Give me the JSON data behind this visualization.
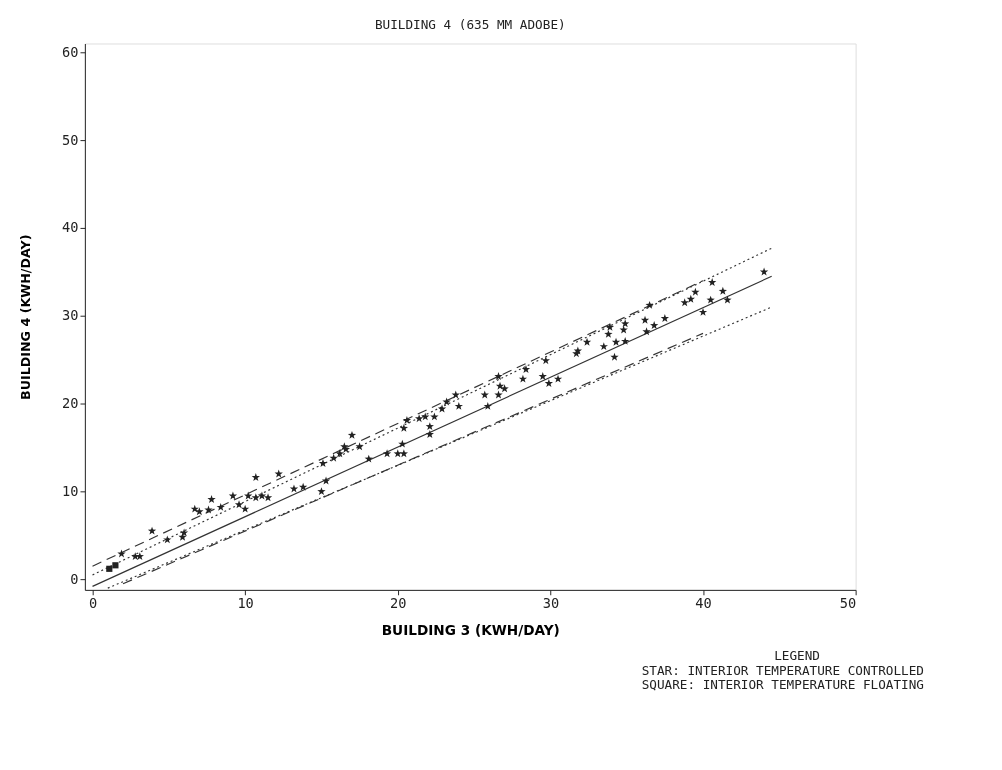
{
  "chart_data": {
    "type": "scatter",
    "title": "BUILDING 4 (635 MM ADOBE)",
    "xlabel": "BUILDING 3 (KWH/DAY)",
    "ylabel": "BUILDING 4 (KWH/DAY)",
    "xlim": [
      -0.5,
      50
    ],
    "ylim": [
      -1.2,
      61
    ],
    "xticks": [
      0,
      10,
      20,
      30,
      40,
      50
    ],
    "yticks": [
      0,
      10,
      20,
      30,
      40,
      50,
      60
    ],
    "grid": false,
    "annotations": [
      "LEGEND",
      "STAR: INTERIOR TEMPERATURE CONTROLLED",
      "SQUARE: INTERIOR TEMPERATURE FLOATING"
    ],
    "series": [
      {
        "type": "line",
        "line_style": "dashed",
        "color": "#333333",
        "x": [
          0,
          40
        ],
        "values": [
          1.5,
          34
        ]
      },
      {
        "type": "line",
        "line_style": "dotted",
        "color": "#333333",
        "x": [
          0,
          44.5
        ],
        "values": [
          0.5,
          37.7
        ]
      },
      {
        "type": "line",
        "line_style": "solid",
        "color": "#333333",
        "x": [
          0,
          44.5
        ],
        "values": [
          -0.8,
          34.5
        ]
      },
      {
        "type": "line",
        "line_style": "dotted",
        "color": "#333333",
        "x": [
          1,
          44.5
        ],
        "values": [
          -1,
          31
        ]
      },
      {
        "type": "line",
        "line_style": "dashed",
        "color": "#333333",
        "x": [
          2,
          40
        ],
        "values": [
          -0.5,
          28
        ]
      },
      {
        "marker": "star",
        "color": "#222222",
        "x": [
          44.0,
          40.6,
          41.3,
          41.6,
          40.5,
          39.5,
          39.2,
          38.8,
          40.0,
          36.5,
          37.5,
          36.2,
          36.8,
          36.3,
          34.9,
          34.8,
          33.9,
          33.8,
          34.9,
          34.3,
          33.5,
          32.4,
          34.2,
          31.8,
          31.7,
          29.7,
          28.4,
          28.2,
          29.5,
          29.9,
          30.5,
          26.6,
          26.7,
          27.0,
          25.7,
          26.6,
          25.9,
          23.8,
          24.0,
          23.2,
          22.9,
          21.8,
          21.4,
          22.4,
          20.6,
          20.4,
          22.1,
          22.1,
          17.0,
          17.5,
          16.5,
          20.3,
          19.3,
          20.0,
          20.4,
          18.1,
          10.7,
          12.2,
          13.2,
          13.8,
          15.3,
          15.0,
          15.8,
          16.2,
          16.6,
          15.1,
          7.8,
          6.7,
          7.0,
          7.6,
          8.4,
          9.2,
          9.6,
          10.0,
          10.2,
          10.7,
          11.1,
          11.5,
          3.9,
          4.9,
          6.0,
          5.9,
          2.8,
          3.1,
          1.9
        ],
        "values": [
          35.0,
          33.8,
          32.8,
          31.8,
          31.8,
          32.7,
          31.9,
          31.5,
          30.4,
          31.2,
          29.7,
          29.5,
          28.9,
          28.2,
          29.1,
          28.4,
          28.7,
          27.9,
          27.1,
          27.0,
          26.5,
          27.0,
          25.3,
          26.0,
          25.7,
          24.9,
          23.9,
          22.8,
          23.1,
          22.3,
          22.8,
          23.1,
          22.0,
          21.7,
          21.0,
          21.0,
          19.7,
          21.0,
          19.7,
          20.2,
          19.4,
          18.5,
          18.3,
          18.5,
          18.1,
          17.2,
          17.4,
          16.5,
          16.4,
          15.1,
          15.1,
          15.4,
          14.3,
          14.3,
          14.3,
          13.7,
          11.6,
          12.0,
          10.3,
          10.5,
          11.2,
          10.0,
          13.8,
          14.3,
          14.8,
          13.2,
          9.1,
          8.0,
          7.7,
          7.9,
          8.2,
          9.5,
          8.5,
          8.0,
          9.5,
          9.3,
          9.5,
          9.3,
          5.5,
          4.5,
          5.3,
          4.8,
          2.6,
          2.6,
          2.9
        ]
      },
      {
        "marker": "square",
        "color": "#222222",
        "x": [
          1.1,
          1.5
        ],
        "values": [
          1.2,
          1.6
        ]
      }
    ]
  }
}
